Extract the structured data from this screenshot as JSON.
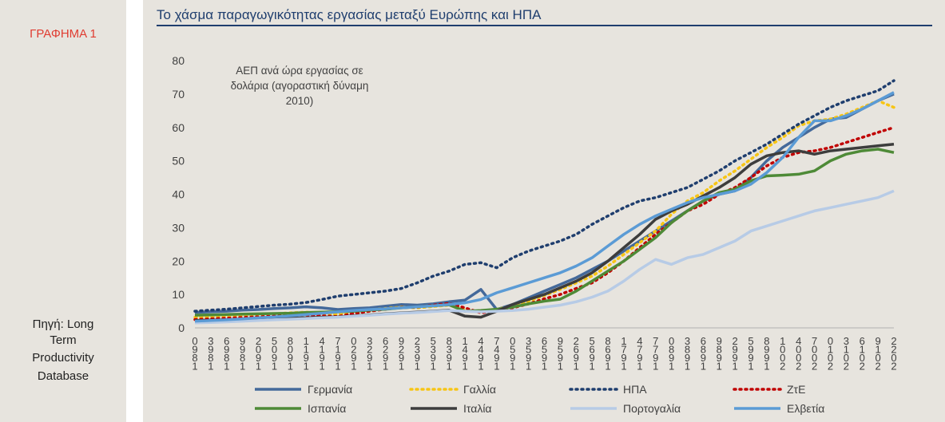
{
  "sidebar": {
    "figure_label": "ΓΡΑΦΗΜΑ 1",
    "source": [
      "Πηγή: Long",
      "Term",
      "Productivity",
      "Database"
    ]
  },
  "colors": {
    "panel_bg": "#e7e4de",
    "title": "#1f3e6e",
    "figure_label": "#e03c31",
    "text": "#404040"
  },
  "chart_data": {
    "type": "line",
    "title": "Το χάσμα παραγωγικότητας εργασίας μεταξύ Ευρώπης και ΗΠΑ",
    "annotation": [
      "ΑΕΠ ανά ώρα εργασίας σε",
      "δολάρια (αγοραστική δύναμη",
      "2010)"
    ],
    "ylim": [
      0,
      80
    ],
    "yticks": [
      0,
      10,
      20,
      30,
      40,
      50,
      60,
      70,
      80
    ],
    "grid": false,
    "legend_position": "bottom",
    "x": [
      1890,
      1893,
      1896,
      1899,
      1902,
      1905,
      1908,
      1911,
      1914,
      1917,
      1920,
      1923,
      1926,
      1929,
      1932,
      1935,
      1938,
      1941,
      1944,
      1947,
      1950,
      1953,
      1956,
      1959,
      1962,
      1965,
      1968,
      1971,
      1974,
      1977,
      1980,
      1983,
      1986,
      1989,
      1992,
      1995,
      1998,
      2001,
      2004,
      2007,
      2010,
      2013,
      2016,
      2019,
      2022
    ],
    "series": [
      {
        "name": "Γερμανία",
        "color": "#44699a",
        "dash": "solid",
        "values": [
          4.6,
          4.8,
          5.0,
          5.3,
          5.5,
          5.8,
          6.0,
          6.3,
          6.0,
          5.5,
          5.8,
          6.0,
          6.5,
          7.0,
          6.8,
          7.2,
          7.8,
          8.3,
          11.5,
          5.5,
          7.0,
          9.0,
          11.0,
          13.0,
          15.0,
          17.5,
          20.0,
          23.0,
          26.0,
          29.0,
          32.0,
          35.0,
          38.0,
          40.0,
          41.0,
          45.0,
          50.0,
          54.0,
          57.0,
          60.0,
          62.5,
          63.0,
          65.5,
          68.0,
          70.0
        ]
      },
      {
        "name": "Γαλλία",
        "color": "#f7c515",
        "dash": "dot",
        "values": [
          3.2,
          3.4,
          3.6,
          3.8,
          4.0,
          4.2,
          4.5,
          4.7,
          4.3,
          4.1,
          4.9,
          5.4,
          5.8,
          6.2,
          6.0,
          6.4,
          6.8,
          5.5,
          4.7,
          5.6,
          6.5,
          8.0,
          9.7,
          11.5,
          13.5,
          15.5,
          18.5,
          22.0,
          25.5,
          29.0,
          34.0,
          38.0,
          40.5,
          44.0,
          47.0,
          50.5,
          54.0,
          57.0,
          60.5,
          62.0,
          62.5,
          64.0,
          66.0,
          68.0,
          66.0
        ]
      },
      {
        "name": "ΗΠΑ",
        "color": "#1f3e6e",
        "dash": "dot",
        "values": [
          5.0,
          5.3,
          5.6,
          6.0,
          6.4,
          6.8,
          7.1,
          7.6,
          8.5,
          9.5,
          10.0,
          10.5,
          11.0,
          11.8,
          13.5,
          15.5,
          17.0,
          19.0,
          19.5,
          18.0,
          21.0,
          23.0,
          24.5,
          26.0,
          28.0,
          31.0,
          33.5,
          36.0,
          38.0,
          39.0,
          40.5,
          42.0,
          44.5,
          47.0,
          50.0,
          52.5,
          55.0,
          58.0,
          61.0,
          63.5,
          66.0,
          68.0,
          69.5,
          71.0,
          74.0
        ]
      },
      {
        "name": "ΖτΕ",
        "color": "#c00000",
        "dash": "dot",
        "values": [
          2.5,
          2.7,
          2.9,
          3.1,
          3.3,
          3.5,
          3.7,
          3.9,
          3.6,
          3.4,
          4.3,
          5.0,
          5.6,
          6.1,
          6.2,
          6.8,
          7.3,
          6.0,
          4.5,
          5.2,
          6.0,
          7.2,
          8.7,
          10.0,
          11.8,
          13.5,
          16.5,
          20.0,
          24.0,
          28.0,
          31.5,
          35.0,
          37.0,
          40.0,
          42.0,
          45.0,
          48.5,
          51.0,
          52.5,
          53.0,
          54.0,
          55.5,
          57.0,
          58.5,
          60.0
        ]
      },
      {
        "name": "Ισπανία",
        "color": "#4e8a37",
        "dash": "solid",
        "values": [
          3.8,
          3.9,
          4.0,
          4.1,
          4.2,
          4.3,
          4.4,
          4.6,
          4.7,
          4.8,
          5.0,
          5.3,
          5.6,
          6.0,
          6.3,
          6.6,
          6.9,
          5.0,
          5.2,
          5.6,
          6.2,
          7.2,
          8.0,
          8.6,
          11.0,
          14.0,
          17.0,
          20.0,
          23.5,
          27.0,
          31.5,
          35.0,
          38.0,
          40.5,
          41.5,
          44.0,
          45.5,
          45.7,
          46.0,
          47.0,
          50.0,
          52.0,
          53.0,
          53.5,
          52.5
        ]
      },
      {
        "name": "Ιταλία",
        "color": "#3d3d3d",
        "dash": "solid",
        "values": [
          2.2,
          2.3,
          2.4,
          2.5,
          2.6,
          2.7,
          2.9,
          3.0,
          3.2,
          3.3,
          3.6,
          3.9,
          4.2,
          4.5,
          4.7,
          5.0,
          5.3,
          3.5,
          3.2,
          5.0,
          7.0,
          8.5,
          10.0,
          12.0,
          14.0,
          16.5,
          20.0,
          24.0,
          28.0,
          32.5,
          35.0,
          37.0,
          39.5,
          42.0,
          45.0,
          49.0,
          51.5,
          52.5,
          53.0,
          52.0,
          53.0,
          53.5,
          54.0,
          54.5,
          55.0
        ]
      },
      {
        "name": "Πορτογαλία",
        "color": "#b7cbe6",
        "dash": "solid",
        "values": [
          1.5,
          1.6,
          1.8,
          2.0,
          2.2,
          2.4,
          2.6,
          2.8,
          3.0,
          3.2,
          3.5,
          3.8,
          4.1,
          4.4,
          4.6,
          4.9,
          5.2,
          5.0,
          4.8,
          5.0,
          5.2,
          5.6,
          6.2,
          6.8,
          7.8,
          9.2,
          11.0,
          14.0,
          17.5,
          20.5,
          19.0,
          21.0,
          22.0,
          24.0,
          26.0,
          29.0,
          30.5,
          32.0,
          33.5,
          35.0,
          36.0,
          37.0,
          38.0,
          39.0,
          41.0
        ]
      },
      {
        "name": "Ελβετία",
        "color": "#5b9bd5",
        "dash": "solid",
        "values": [
          2.0,
          2.2,
          2.4,
          2.7,
          3.0,
          3.3,
          3.6,
          4.0,
          4.4,
          4.8,
          5.2,
          5.5,
          5.7,
          6.0,
          6.3,
          6.6,
          7.0,
          7.5,
          8.5,
          10.5,
          12.0,
          13.5,
          15.0,
          16.5,
          18.5,
          21.0,
          24.5,
          28.0,
          31.0,
          33.5,
          35.5,
          37.5,
          39.0,
          40.0,
          41.0,
          43.0,
          46.5,
          51.0,
          57.0,
          62.0,
          62.0,
          63.5,
          65.5,
          68.0,
          70.5
        ]
      }
    ]
  }
}
